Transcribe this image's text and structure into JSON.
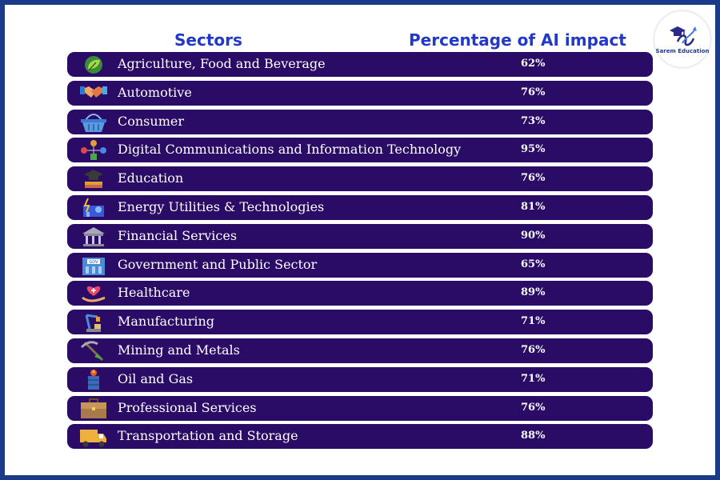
{
  "header": {
    "sectors_label": "Sectors",
    "percentage_label": "Percentage of AI impact"
  },
  "logo": {
    "text": "Sarem Education"
  },
  "colors": {
    "border": "#1a3a8a",
    "row_bg": "#2a0b66",
    "header_text": "#2238c8"
  },
  "rows": [
    {
      "label": "Agriculture, Food and Beverage",
      "value": "62%",
      "icon": "plant-icon"
    },
    {
      "label": "Automotive",
      "value": "76%",
      "icon": "handshake-icon"
    },
    {
      "label": "Consumer",
      "value": "73%",
      "icon": "basket-icon"
    },
    {
      "label": "Digital Communications and Information Technology",
      "value": "95%",
      "icon": "network-icon"
    },
    {
      "label": "Education",
      "value": "76%",
      "icon": "graduation-icon"
    },
    {
      "label": "Energy Utilities & Technologies",
      "value": "81%",
      "icon": "energy-icon"
    },
    {
      "label": "Financial Services",
      "value": "90%",
      "icon": "bank-icon"
    },
    {
      "label": "Government and Public Sector",
      "value": "65%",
      "icon": "government-building-icon"
    },
    {
      "label": "Healthcare",
      "value": "89%",
      "icon": "heart-hand-icon"
    },
    {
      "label": "Manufacturing",
      "value": "71%",
      "icon": "robot-arm-icon"
    },
    {
      "label": "Mining and Metals",
      "value": "76%",
      "icon": "pickaxe-icon"
    },
    {
      "label": "Oil and Gas",
      "value": "71%",
      "icon": "oil-barrel-icon"
    },
    {
      "label": "Professional Services",
      "value": "76%",
      "icon": "briefcase-icon"
    },
    {
      "label": "Transportation and Storage",
      "value": "88%",
      "icon": "truck-icon"
    }
  ]
}
